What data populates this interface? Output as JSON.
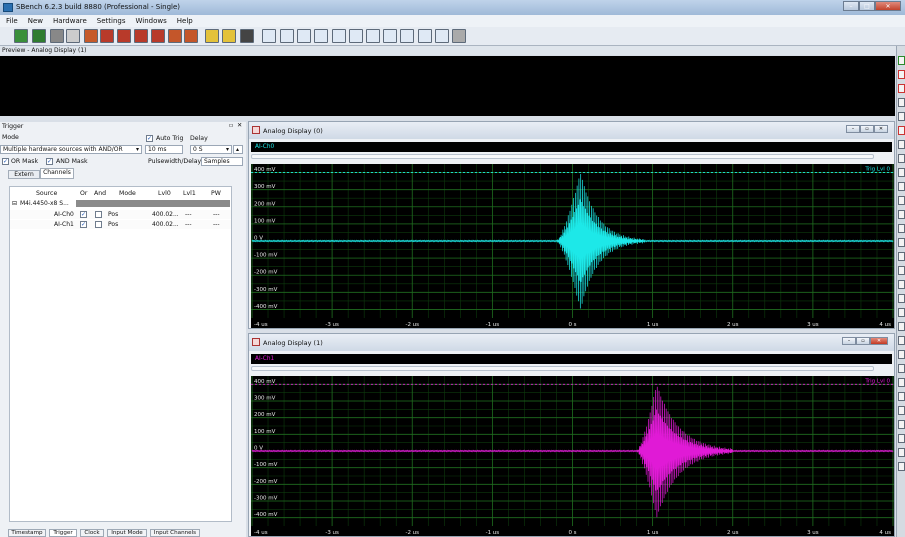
{
  "app": {
    "title": "SBench 6.2.3 build 8880 (Professional - Single)"
  },
  "menu": [
    "File",
    "New",
    "Hardware",
    "Settings",
    "Windows",
    "Help"
  ],
  "preview": {
    "title": "Preview - Analog Display (1)"
  },
  "trigger": {
    "panel_title": "Trigger",
    "mode_label": "Mode",
    "mode_value": "Multiple hardware sources with AND/OR",
    "auto_trig_label": "Auto Trig",
    "auto_trig_checked": true,
    "delay_label": "Delay",
    "timeout_value": "10 ms",
    "delay_value": "0 S",
    "or_mask_label": "OR Mask",
    "and_mask_label": "AND Mask",
    "pulsewidth_label": "Pulsewidth/Delay in",
    "pulsewidth_unit": "Samples",
    "tabs": [
      "Extern",
      "Channels"
    ],
    "active_tab": "Channels",
    "table": {
      "headers": [
        "Source",
        "Or",
        "And",
        "Mode",
        "Lvl0",
        "Lvl1",
        "PW"
      ],
      "group": "M4i.4450-x8 S...",
      "rows": [
        {
          "source": "AI-Ch0",
          "or": "✓",
          "and": "",
          "mode": "Pos",
          "lvl0": "400.02...",
          "lvl1": "---",
          "pw": "---"
        },
        {
          "source": "AI-Ch1",
          "or": "✓",
          "and": "",
          "mode": "Pos",
          "lvl0": "400.02...",
          "lvl1": "---",
          "pw": "---"
        }
      ]
    }
  },
  "bottom_tabs": [
    "Timestamp",
    "Trigger",
    "Clock",
    "Input Mode",
    "Input Channels"
  ],
  "displays": [
    {
      "title": "Analog Display (0)",
      "channel": "AI-Ch0",
      "color": "#1de8e8",
      "trig_label": "Trig Lvl 0"
    },
    {
      "title": "Analog Display (1)",
      "channel": "AI-Ch1",
      "color": "#e01ad6",
      "trig_label": "Trig Lvl 0"
    }
  ],
  "chart_data": [
    {
      "type": "line",
      "title": "Analog Display (0)",
      "series": [
        {
          "name": "AI-Ch0",
          "color": "#1de8e8",
          "burst_start_us": -0.2,
          "burst_peak_us": 0.1,
          "burst_end_us": 0.6,
          "peak_mV": 420
        }
      ],
      "ylabels": [
        "400 mV",
        "300 mV",
        "200 mV",
        "100 mV",
        "0 V",
        "-100 mV",
        "-200 mV",
        "-300 mV",
        "-400 mV"
      ],
      "xlabels": [
        "-4 us",
        "-3 us",
        "-2 us",
        "-1 us",
        "0 s",
        "1 us",
        "2 us",
        "3 us",
        "4 us"
      ],
      "xlim": [
        -4,
        4
      ],
      "ylim": [
        -450,
        450
      ],
      "trigger_level_mV": 400,
      "grid": true
    },
    {
      "type": "line",
      "title": "Analog Display (1)",
      "series": [
        {
          "name": "AI-Ch1",
          "color": "#e01ad6",
          "burst_start_us": 0.8,
          "burst_peak_us": 1.05,
          "burst_end_us": 1.7,
          "peak_mV": 420
        }
      ],
      "ylabels": [
        "400 mV",
        "300 mV",
        "200 mV",
        "100 mV",
        "0 V",
        "-100 mV",
        "-200 mV",
        "-300 mV",
        "-400 mV"
      ],
      "xlabels": [
        "-4 us",
        "-3 us",
        "-2 us",
        "-1 us",
        "0 s",
        "1 us",
        "2 us",
        "3 us",
        "4 us"
      ],
      "xlim": [
        -4,
        4
      ],
      "ylim": [
        -450,
        450
      ],
      "trigger_level_mV": 400,
      "grid": true
    }
  ]
}
